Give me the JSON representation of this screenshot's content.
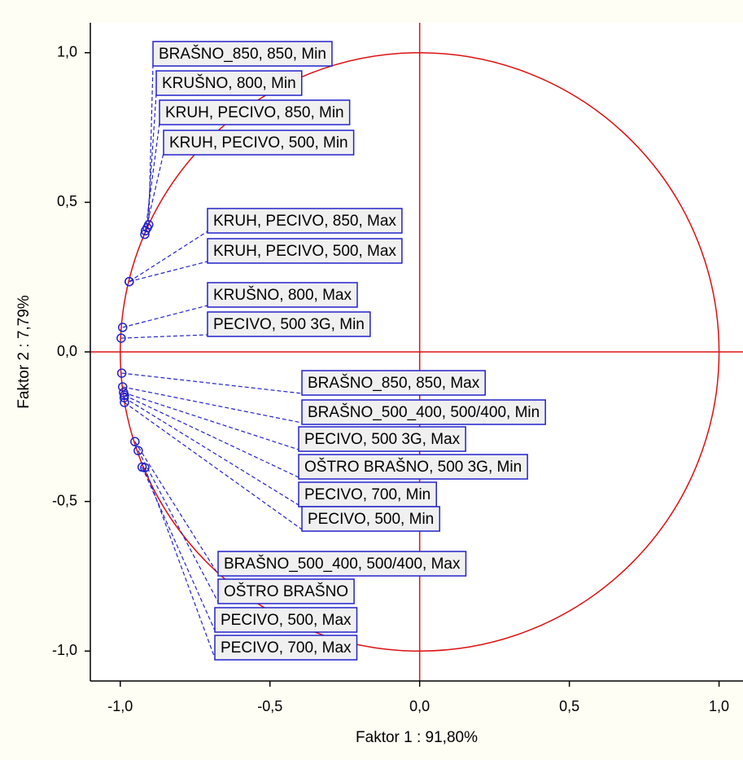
{
  "chart_data": {
    "type": "scatter",
    "x_label": "Faktor 1 : 91,80%",
    "y_label": "Faktor 2 :  7,79%",
    "point_labels": [
      "BRAŠNO_850, 850, Min",
      "KRUŠNO, 800, Min",
      "KRUH, PECIVO, 850, Min",
      "KRUH, PECIVO, 500, Min",
      "KRUH, PECIVO, 850, Max",
      "KRUH, PECIVO, 500, Max",
      "KRUŠNO, 800, Max",
      "PECIVO, 500 3G, Min",
      "BRAŠNO_850, 850, Max",
      "BRAŠNO_500_400, 500/400, Min",
      "PECIVO, 500 3G, Max",
      "OŠTRO BRAŠNO, 500 3G, Min",
      "PECIVO, 700, Min",
      "PECIVO, 500, Min",
      "BRAŠNO_500_400, 500/400, Max",
      "OŠTRO BRAŠNO",
      "PECIVO, 500, Max",
      "PECIVO, 700, Max"
    ],
    "x": [
      -0.905,
      -0.91,
      -0.916,
      -0.918,
      -0.97,
      -0.97,
      -0.992,
      -0.997,
      -0.995,
      -0.992,
      -0.989,
      -0.986,
      -0.987,
      -0.986,
      -0.951,
      -0.94,
      -0.927,
      -0.918
    ],
    "values": [
      0.425,
      0.415,
      0.405,
      0.393,
      0.235,
      0.235,
      0.082,
      0.046,
      -0.071,
      -0.117,
      -0.136,
      -0.145,
      -0.153,
      -0.169,
      -0.3,
      -0.33,
      -0.385,
      -0.387
    ],
    "color": "#2222cc",
    "xlim": [
      -1.1,
      1.08
    ],
    "ylim": [
      -1.1,
      1.1
    ],
    "xticks": [
      {
        "value": -1,
        "label": "-1,0"
      },
      {
        "value": -0.5,
        "label": "-0,5"
      },
      {
        "value": 0,
        "label": "0,0"
      },
      {
        "value": 0.5,
        "label": "0,5"
      },
      {
        "value": 1,
        "label": "1,0"
      }
    ],
    "yticks": [
      {
        "value": -1,
        "label": "-1,0"
      },
      {
        "value": -0.5,
        "label": "-0,5"
      },
      {
        "value": 0,
        "label": "0,0"
      },
      {
        "value": 0.5,
        "label": "0,5"
      },
      {
        "value": 1,
        "label": "1,0"
      }
    ],
    "reference_circle": true,
    "reference_color": "#dd1111"
  }
}
